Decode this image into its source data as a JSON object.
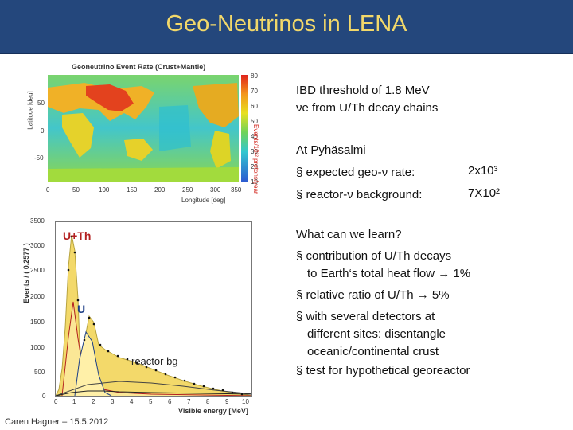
{
  "header": {
    "title": "Geo-Neutrinos in LENA"
  },
  "map": {
    "title": "Geoneutrino Event Rate (Crust+Mantle)",
    "y_axis_label": "Latitude [deg]",
    "x_axis_label": "Longitude [deg]",
    "x_ticks": [
      "0",
      "50",
      "100",
      "150",
      "200",
      "250",
      "300",
      "350"
    ],
    "y_ticks": [
      "50",
      "0",
      "-50"
    ],
    "colorbar_ticks": [
      "80",
      "70",
      "60",
      "50",
      "40",
      "30",
      "20",
      "10"
    ],
    "colorbar_label": "Events/10³² protons/year"
  },
  "spectrum": {
    "y_axis_label": "Events / ( 0.2577 )",
    "x_axis_label": "Visible energy [MeV]",
    "x_ticks": [
      "0",
      "1",
      "2",
      "3",
      "4",
      "5",
      "6",
      "7",
      "8",
      "9",
      "10"
    ],
    "y_ticks": [
      "3500",
      "3000",
      "2500",
      "2000",
      "1500",
      "1000",
      "500",
      "0"
    ],
    "label_uth": "U+Th",
    "label_u": "U",
    "label_reactor": "reactor bg"
  },
  "text": {
    "ibd_line": "IBD threshold of 1.8 MeV",
    "nu_line": "ν̄e from U/Th decay chains",
    "site": "At Pyhäsalmi",
    "geo_rate_label": "§ expected geo-ν rate:",
    "geo_rate_value": "2x10³",
    "reactor_label": "§ reactor-ν background:",
    "reactor_value": "7X10²",
    "learn_title": "What can we learn?",
    "bullet1a": "§ contribution of U/Th decays",
    "bullet1b": "to Earth‘s total heat flow → 1%",
    "bullet2": "§ relative ratio of U/Th → 5%",
    "bullet3a": "§ with several detectors at",
    "bullet3b": "different sites: disentangle",
    "bullet3c": "oceanic/continental crust",
    "bullet4": "§ test for hypothetical georeactor"
  },
  "footer": {
    "text": "Caren Hagner – 15.5.2012"
  },
  "colors": {
    "title_bg": "#24477c",
    "title_text": "#f2d86a",
    "uth_label": "#b31f1f",
    "u_label": "#1d3f86",
    "fill": "#f3d96a"
  }
}
